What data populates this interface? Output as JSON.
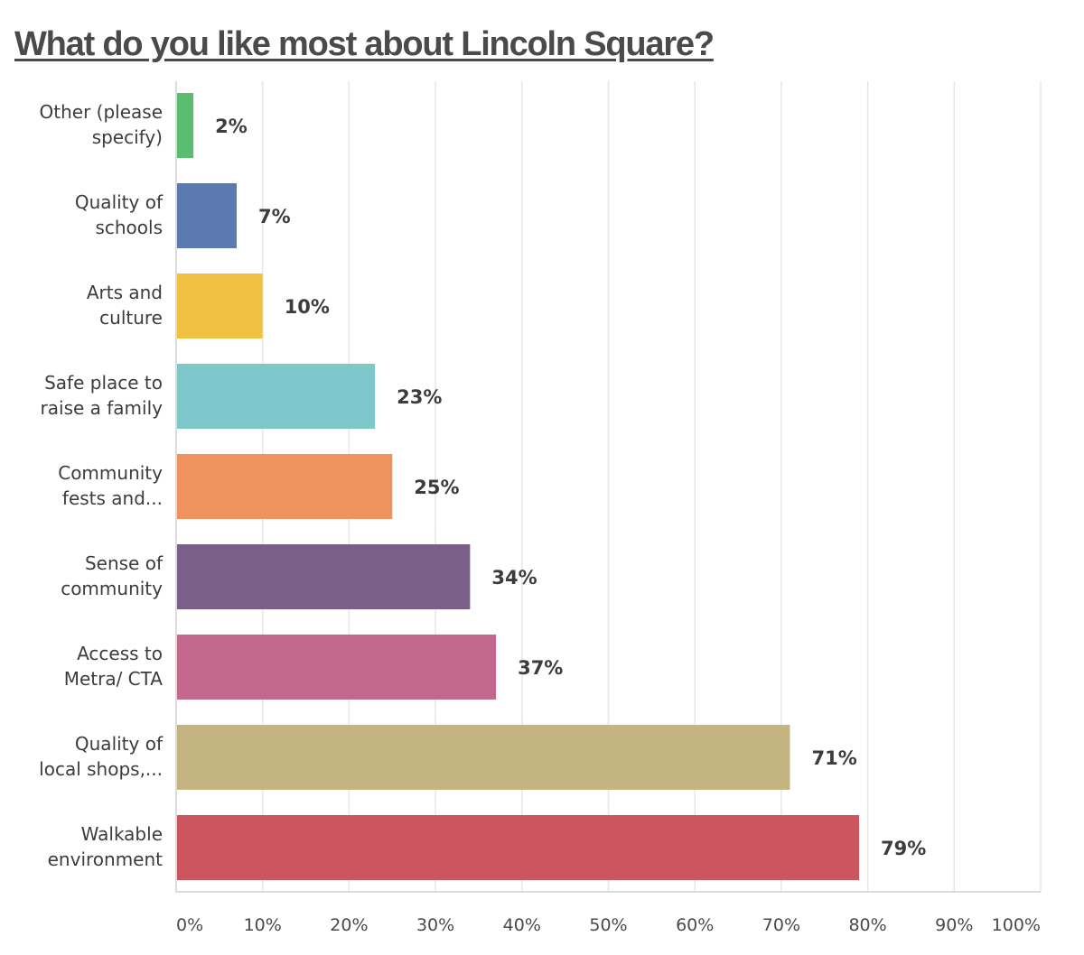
{
  "chart_data": {
    "type": "bar",
    "orientation": "horizontal",
    "title": "What do you like most about Lincoln Square?",
    "categories": [
      [
        "Other (please",
        "specify)"
      ],
      [
        "Quality of",
        "schools"
      ],
      [
        "Arts and",
        "culture"
      ],
      [
        "Safe place to",
        "raise a family"
      ],
      [
        "Community",
        "fests and..."
      ],
      [
        "Sense of",
        "community"
      ],
      [
        "Access to",
        "Metra/ CTA"
      ],
      [
        "Quality of",
        "local shops,..."
      ],
      [
        "Walkable",
        "environment"
      ]
    ],
    "values": [
      2,
      7,
      10,
      23,
      25,
      34,
      37,
      71,
      79
    ],
    "value_labels": [
      "2%",
      "7%",
      "10%",
      "23%",
      "25%",
      "34%",
      "37%",
      "71%",
      "79%"
    ],
    "colors": [
      "#5bbd72",
      "#5b7ab2",
      "#f0c040",
      "#7ec8cb",
      "#f0925e",
      "#7a5f8a",
      "#c4678c",
      "#c4b480",
      "#cc555f"
    ],
    "x_ticks": [
      "0%",
      "10%",
      "20%",
      "30%",
      "40%",
      "50%",
      "60%",
      "70%",
      "80%",
      "90%",
      "100%"
    ],
    "xlim": [
      0,
      100
    ],
    "grid": true,
    "legend": "none"
  }
}
